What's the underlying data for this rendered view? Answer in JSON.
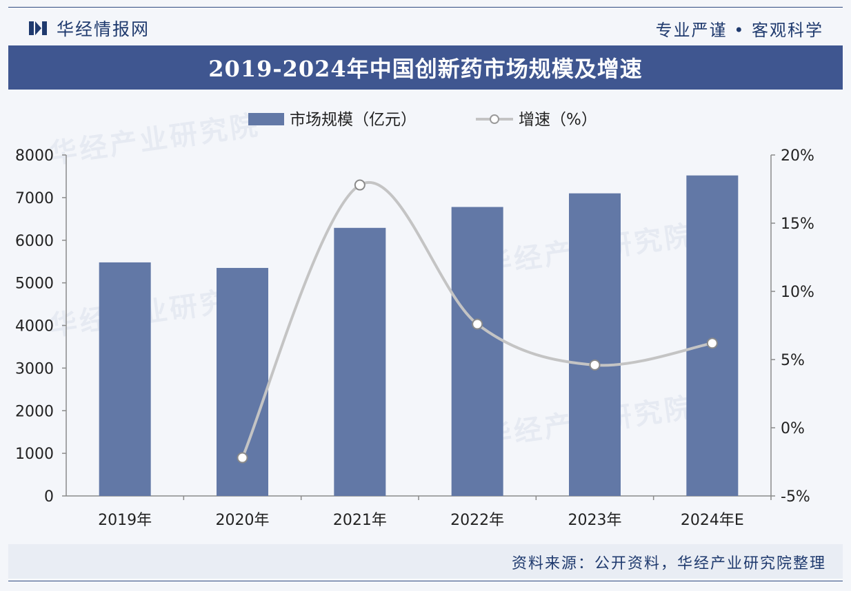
{
  "header": {
    "brand_name": "华经情报网",
    "slogan": "专业严谨 • 客观科学",
    "title": "2019-2024年中国创新药市场规模及增速"
  },
  "footer": {
    "source": "资料来源：公开资料，华经产业研究院整理"
  },
  "watermark": {
    "text": "华经产业研究院"
  },
  "colors": {
    "bar": "#6278a6",
    "line": "#c4c4c4",
    "title_bar": "#3f5690",
    "brand": "#1f3a6e"
  },
  "chart_data": {
    "type": "bar",
    "categories": [
      "2019年",
      "2020年",
      "2021年",
      "2022年",
      "2023年",
      "2024年E"
    ],
    "series": [
      {
        "name": "市场规模（亿元）",
        "type": "bar",
        "axis": "left",
        "values": [
          5480,
          5350,
          6290,
          6780,
          7100,
          7520
        ]
      },
      {
        "name": "增速（%）",
        "type": "line",
        "smooth": true,
        "axis": "right",
        "values": [
          null,
          -2.2,
          17.8,
          7.6,
          4.6,
          6.2
        ]
      }
    ],
    "y_left": {
      "min": 0,
      "max": 8000,
      "ticks": [
        "0",
        "1000",
        "2000",
        "3000",
        "4000",
        "5000",
        "6000",
        "7000",
        "8000"
      ]
    },
    "y_right": {
      "min": -5,
      "max": 20,
      "ticks": [
        "-5%",
        "0%",
        "5%",
        "10%",
        "15%",
        "20%"
      ]
    },
    "legend_position": "top-center",
    "grid": false
  }
}
